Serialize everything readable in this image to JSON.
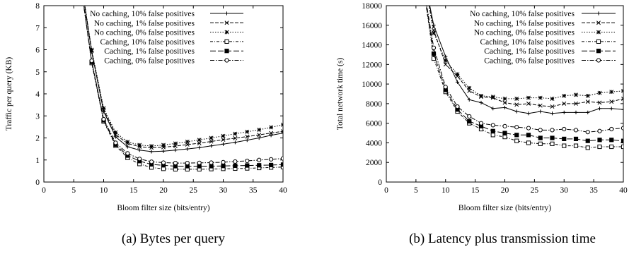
{
  "chart_data": [
    {
      "type": "line",
      "caption": "(a) Bytes per query",
      "xlabel": "Bloom filter size (bits/entry)",
      "ylabel": "Traffic per query (KB)",
      "xlim": [
        0,
        40
      ],
      "ylim": [
        0,
        8
      ],
      "xticks": [
        0,
        5,
        10,
        15,
        20,
        25,
        30,
        35,
        40
      ],
      "yticks": [
        0,
        1,
        2,
        3,
        4,
        5,
        6,
        7,
        8
      ],
      "x": [
        6,
        8,
        10,
        12,
        14,
        16,
        18,
        20,
        22,
        24,
        26,
        28,
        30,
        32,
        34,
        36,
        38,
        40
      ],
      "legend_position": "top-right",
      "series": [
        {
          "name": "No caching, 10% false positives",
          "marker": "plus",
          "dash": "",
          "values": [
            9.5,
            5.9,
            3.2,
            2.05,
            1.6,
            1.45,
            1.38,
            1.4,
            1.45,
            1.5,
            1.56,
            1.64,
            1.72,
            1.8,
            1.9,
            2.0,
            2.12,
            2.22
          ]
        },
        {
          "name": "No caching, 1% false positives",
          "marker": "x",
          "dash": "5,2",
          "values": [
            9.5,
            5.95,
            3.28,
            2.15,
            1.75,
            1.6,
            1.56,
            1.58,
            1.63,
            1.7,
            1.76,
            1.84,
            1.92,
            1.99,
            2.06,
            2.14,
            2.22,
            2.3
          ]
        },
        {
          "name": "No caching, 0% false positives",
          "marker": "star",
          "dash": "1.5,2",
          "values": [
            9.5,
            6.0,
            3.35,
            2.25,
            1.82,
            1.68,
            1.63,
            1.68,
            1.75,
            1.83,
            1.91,
            2.0,
            2.09,
            2.19,
            2.28,
            2.37,
            2.48,
            2.6
          ]
        },
        {
          "name": "Caching, 10% false positives",
          "marker": "square",
          "dash": "4,2,1,2",
          "values": [
            9.3,
            5.4,
            2.75,
            1.65,
            1.1,
            0.82,
            0.66,
            0.6,
            0.58,
            0.58,
            0.58,
            0.59,
            0.6,
            0.61,
            0.62,
            0.64,
            0.66,
            0.68
          ]
        },
        {
          "name": "Caching, 1% false positives",
          "marker": "filled-square",
          "dash": "8,3",
          "values": [
            9.3,
            5.45,
            2.8,
            1.7,
            1.2,
            0.95,
            0.8,
            0.76,
            0.72,
            0.72,
            0.72,
            0.72,
            0.73,
            0.74,
            0.75,
            0.76,
            0.77,
            0.79
          ]
        },
        {
          "name": "Caching, 0% false positives",
          "marker": "circle",
          "dash": "6,2,1.5,2",
          "values": [
            9.3,
            5.5,
            2.85,
            1.78,
            1.3,
            1.05,
            0.92,
            0.88,
            0.86,
            0.86,
            0.87,
            0.88,
            0.9,
            0.93,
            0.96,
            1.0,
            1.03,
            1.07
          ]
        }
      ]
    },
    {
      "type": "line",
      "caption": "(b) Latency plus transmission time",
      "xlabel": "Bloom filter size (bits/entry)",
      "ylabel": "Total network time (s)",
      "xlim": [
        0,
        40
      ],
      "ylim": [
        0,
        18000
      ],
      "xticks": [
        0,
        5,
        10,
        15,
        20,
        25,
        30,
        35,
        40
      ],
      "yticks": [
        0,
        2000,
        4000,
        6000,
        8000,
        10000,
        12000,
        14000,
        16000,
        18000
      ],
      "x": [
        6,
        8,
        10,
        12,
        14,
        16,
        18,
        20,
        22,
        24,
        26,
        28,
        30,
        32,
        34,
        36,
        38,
        40
      ],
      "legend_position": "top-right",
      "series": [
        {
          "name": "No caching, 10% false positives",
          "marker": "plus",
          "dash": "",
          "values": [
            22000,
            16000,
            12800,
            10200,
            8400,
            8100,
            7500,
            7600,
            7200,
            7000,
            7200,
            7000,
            7100,
            7100,
            7100,
            7500,
            7500,
            7400
          ]
        },
        {
          "name": "No caching, 1% false positives",
          "marker": "x",
          "dash": "5,2",
          "values": [
            22000,
            15500,
            12000,
            10800,
            9300,
            8700,
            8600,
            8100,
            7900,
            8000,
            7800,
            7700,
            8000,
            8000,
            8200,
            8100,
            8200,
            8500
          ]
        },
        {
          "name": "No caching, 0% false positives",
          "marker": "star",
          "dash": "1.5,2",
          "values": [
            22000,
            15200,
            12400,
            11000,
            9600,
            8800,
            8700,
            8500,
            8500,
            8600,
            8600,
            8500,
            8800,
            8900,
            8800,
            9100,
            9200,
            9300
          ]
        },
        {
          "name": "Caching, 10% false positives",
          "marker": "square",
          "dash": "4,2,1,2",
          "values": [
            21000,
            12600,
            9200,
            7200,
            6000,
            5400,
            4800,
            4600,
            4200,
            4000,
            3900,
            3900,
            3700,
            3700,
            3500,
            3600,
            3600,
            3600
          ]
        },
        {
          "name": "Caching, 1% false positives",
          "marker": "filled-square",
          "dash": "8,3",
          "values": [
            21000,
            13100,
            9400,
            7400,
            6200,
            5700,
            5200,
            5000,
            4800,
            4800,
            4500,
            4500,
            4400,
            4400,
            4200,
            4300,
            4300,
            4200
          ]
        },
        {
          "name": "Caching, 0% false positives",
          "marker": "circle",
          "dash": "6,2,1.5,2",
          "values": [
            21000,
            13700,
            9700,
            7700,
            6700,
            6000,
            5800,
            5700,
            5600,
            5500,
            5300,
            5300,
            5400,
            5300,
            5100,
            5200,
            5400,
            5500
          ]
        }
      ]
    }
  ]
}
